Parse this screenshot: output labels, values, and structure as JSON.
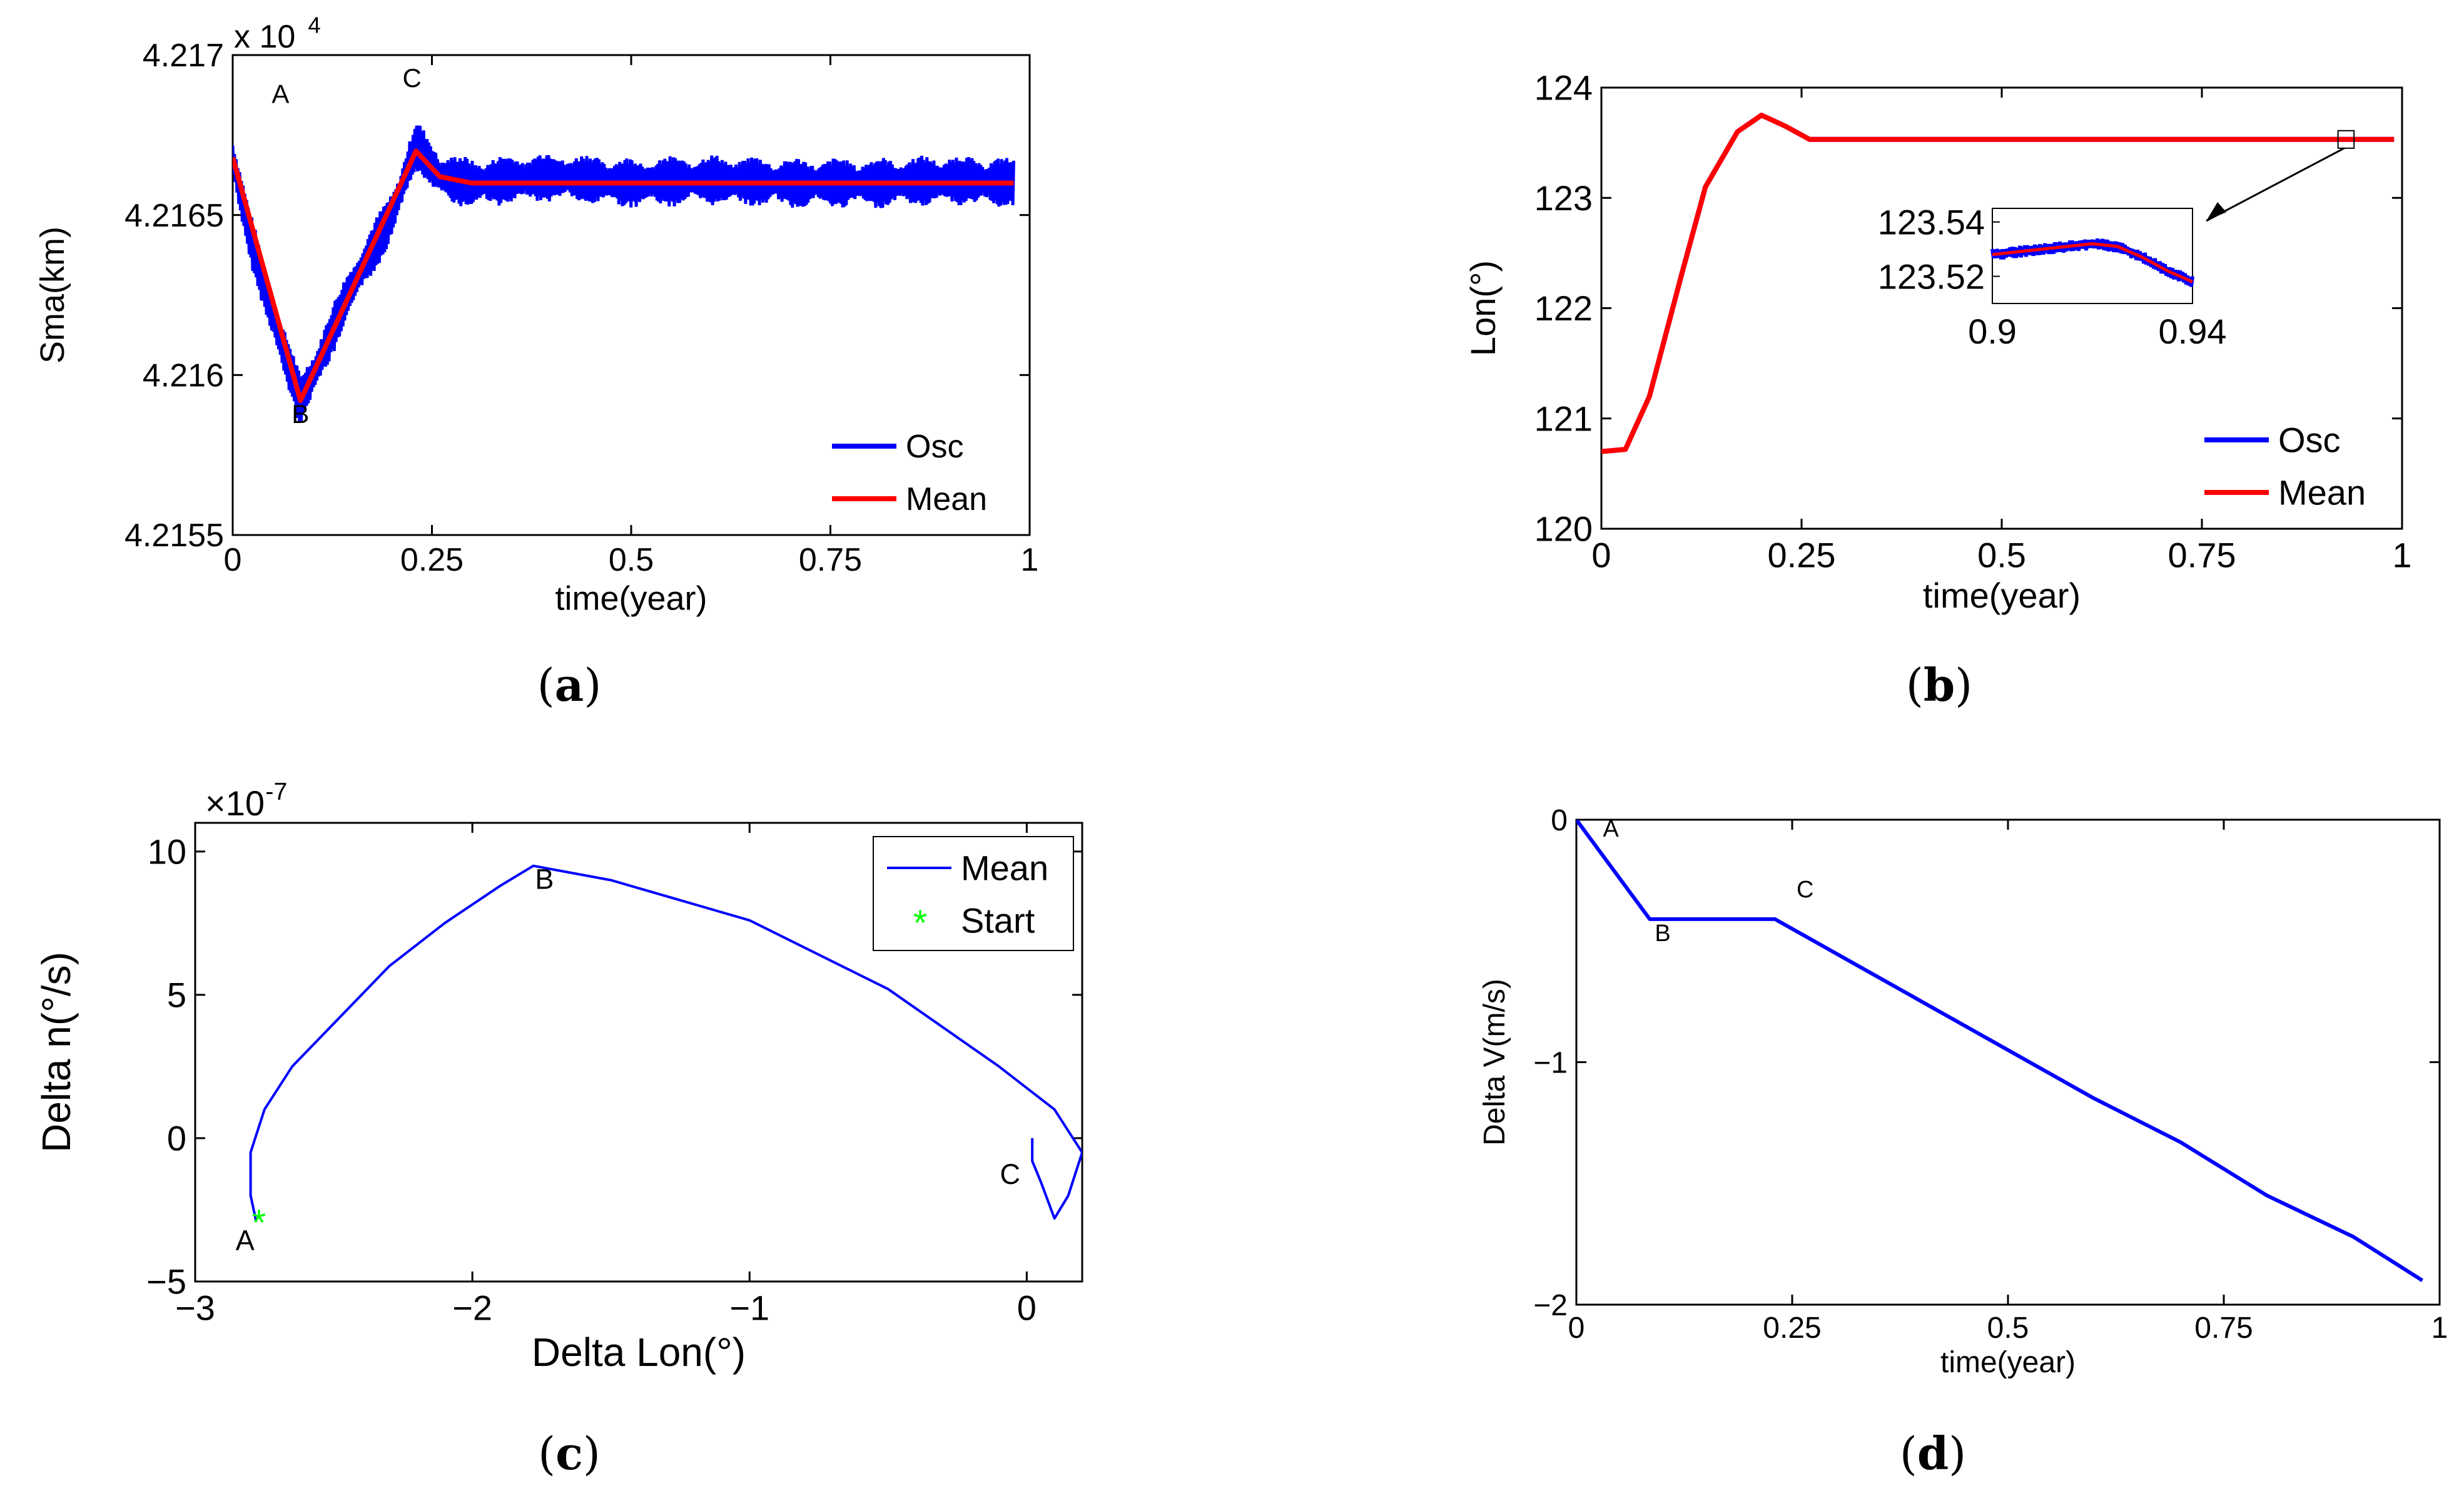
{
  "chart_data": [
    {
      "id": "a",
      "type": "line",
      "caption_letter": "a",
      "xlabel": "time(year)",
      "ylabel": "Sma(km)",
      "exponent_label": "x 10",
      "exponent_power": "4",
      "xlim": [
        0,
        1
      ],
      "ylim": [
        4.2155,
        4.217
      ],
      "xticks": [
        0,
        0.25,
        0.5,
        0.75,
        1
      ],
      "xtick_labels": [
        "0",
        "0.25",
        "0.5",
        "0.75",
        "1"
      ],
      "yticks": [
        4.2155,
        4.216,
        4.2165,
        4.217
      ],
      "ytick_labels": [
        "4.2155",
        "4.216",
        "4.2165",
        "4.217"
      ],
      "series": [
        {
          "name": "Osc",
          "color": "#0000ff",
          "band_halfwidth": 8e-05,
          "points": [
            [
              0,
              4.21668
            ],
            [
              0.02,
              4.21645
            ],
            [
              0.05,
              4.21618
            ],
            [
              0.085,
              4.21592
            ],
            [
              0.11,
              4.21605
            ],
            [
              0.15,
              4.21628
            ],
            [
              0.2,
              4.2165
            ],
            [
              0.23,
              4.21672
            ],
            [
              0.26,
              4.21662
            ],
            [
              0.3,
              4.2166
            ],
            [
              0.4,
              4.21662
            ],
            [
              0.5,
              4.2166
            ],
            [
              0.6,
              4.21661
            ],
            [
              0.7,
              4.2166
            ],
            [
              0.8,
              4.2166
            ],
            [
              0.9,
              4.21661
            ],
            [
              0.98,
              4.2166
            ]
          ]
        },
        {
          "name": "Mean",
          "color": "#ff0000",
          "points": [
            [
              0,
              4.21668
            ],
            [
              0.085,
              4.21592
            ],
            [
              0.23,
              4.2167
            ],
            [
              0.26,
              4.21662
            ],
            [
              0.3,
              4.2166
            ],
            [
              0.5,
              4.2166
            ],
            [
              0.75,
              4.2166
            ],
            [
              0.98,
              4.2166
            ]
          ]
        }
      ],
      "annotations": [
        {
          "text": "A",
          "x": 0.06,
          "y": 4.21685
        },
        {
          "text": "B",
          "x": 0.085,
          "y": 4.21585
        },
        {
          "text": "C",
          "x": 0.225,
          "y": 4.2169
        }
      ],
      "legend": {
        "position": "bottom-right",
        "entries": [
          "Osc",
          "Mean"
        ]
      }
    },
    {
      "id": "b",
      "type": "line",
      "caption_letter": "b",
      "xlabel": "time(year)",
      "ylabel": "Lon(°)",
      "xlim": [
        0,
        1
      ],
      "ylim": [
        120,
        124
      ],
      "xticks": [
        0,
        0.25,
        0.5,
        0.75,
        1
      ],
      "xtick_labels": [
        "0",
        "0.25",
        "0.5",
        "0.75",
        "1"
      ],
      "yticks": [
        120,
        121,
        122,
        123,
        124
      ],
      "ytick_labels": [
        "120",
        "121",
        "122",
        "123",
        "124"
      ],
      "series": [
        {
          "name": "Osc",
          "color": "#0000ff",
          "points": [
            [
              0,
              120.7
            ],
            [
              0.03,
              120.72
            ],
            [
              0.06,
              121.2
            ],
            [
              0.1,
              122.3
            ],
            [
              0.13,
              123.1
            ],
            [
              0.17,
              123.6
            ],
            [
              0.2,
              123.75
            ],
            [
              0.23,
              123.65
            ],
            [
              0.26,
              123.53
            ],
            [
              0.4,
              123.53
            ],
            [
              0.6,
              123.53
            ],
            [
              0.8,
              123.53
            ],
            [
              0.99,
              123.53
            ]
          ]
        },
        {
          "name": "Mean",
          "color": "#ff0000",
          "points": [
            [
              0,
              120.7
            ],
            [
              0.03,
              120.72
            ],
            [
              0.06,
              121.2
            ],
            [
              0.1,
              122.3
            ],
            [
              0.13,
              123.1
            ],
            [
              0.17,
              123.6
            ],
            [
              0.2,
              123.75
            ],
            [
              0.23,
              123.65
            ],
            [
              0.26,
              123.53
            ],
            [
              0.4,
              123.53
            ],
            [
              0.6,
              123.53
            ],
            [
              0.8,
              123.53
            ],
            [
              0.99,
              123.53
            ]
          ]
        }
      ],
      "inset": {
        "xlim": [
          0.9,
          0.94
        ],
        "ylim": [
          123.51,
          123.545
        ],
        "xticks": [
          0.9,
          0.94
        ],
        "xtick_labels": [
          "0.9",
          "0.94"
        ],
        "yticks": [
          123.52,
          123.54
        ],
        "ytick_labels": [
          "123.52",
          "123.54"
        ],
        "points": [
          [
            0.9,
            123.528
          ],
          [
            0.91,
            123.53
          ],
          [
            0.92,
            123.532
          ],
          [
            0.925,
            123.531
          ],
          [
            0.93,
            123.527
          ],
          [
            0.935,
            123.522
          ],
          [
            0.94,
            123.518
          ]
        ],
        "zoom_box_x": [
          0.92,
          0.94
        ]
      },
      "legend": {
        "position": "bottom-right",
        "entries": [
          "Osc",
          "Mean"
        ]
      }
    },
    {
      "id": "c",
      "type": "line",
      "caption_letter": "c",
      "xlabel": "Delta Lon(°)",
      "ylabel": "Delta n(°/s)",
      "exponent_label": "×10",
      "exponent_power": "-7",
      "xlim": [
        -3,
        0.2
      ],
      "ylim": [
        -5,
        11
      ],
      "xticks": [
        -3,
        -2,
        -1,
        0
      ],
      "xtick_labels": [
        "−3",
        "−2",
        "−1",
        "0"
      ],
      "yticks": [
        -5,
        0,
        5,
        10
      ],
      "ytick_labels": [
        "−5",
        "0",
        "5",
        "10"
      ],
      "series": [
        {
          "name": "Mean",
          "color": "#0000ff",
          "points": [
            [
              -2.78,
              -2.9
            ],
            [
              -2.8,
              -2.0
            ],
            [
              -2.8,
              -0.5
            ],
            [
              -2.75,
              1.0
            ],
            [
              -2.65,
              2.5
            ],
            [
              -2.5,
              4.0
            ],
            [
              -2.3,
              6.0
            ],
            [
              -2.1,
              7.5
            ],
            [
              -1.9,
              8.8
            ],
            [
              -1.78,
              9.5
            ],
            [
              -1.5,
              9.0
            ],
            [
              -1.0,
              7.6
            ],
            [
              -0.5,
              5.2
            ],
            [
              -0.1,
              2.5
            ],
            [
              0.1,
              1.0
            ],
            [
              0.2,
              -0.5
            ],
            [
              0.15,
              -2.0
            ],
            [
              0.1,
              -2.8
            ],
            [
              0.05,
              -1.5
            ],
            [
              0.02,
              -0.8
            ],
            [
              0.02,
              0.0
            ]
          ]
        },
        {
          "name": "Start",
          "color": "#00ff00",
          "points": [
            [
              -2.77,
              -2.9
            ]
          ]
        }
      ],
      "annotations": [
        {
          "text": "A",
          "x": -2.82,
          "y": -3.9
        },
        {
          "text": "B",
          "x": -1.74,
          "y": 8.7
        },
        {
          "text": "C",
          "x": -0.06,
          "y": -1.6
        }
      ],
      "legend": {
        "position": "top-right",
        "entries": [
          "Mean",
          "Start"
        ]
      }
    },
    {
      "id": "d",
      "type": "line",
      "caption_letter": "d",
      "xlabel": "time(year)",
      "ylabel": "Delta V(m/s)",
      "xlim": [
        0,
        1
      ],
      "ylim": [
        -2,
        0
      ],
      "xticks": [
        0,
        0.25,
        0.5,
        0.75,
        1
      ],
      "xtick_labels": [
        "0",
        "0.25",
        "0.5",
        "0.75",
        "1"
      ],
      "yticks": [
        -2,
        -1,
        0
      ],
      "ytick_labels": [
        "−2",
        "−1",
        "0"
      ],
      "series": [
        {
          "name": "",
          "color": "#0000ff",
          "points": [
            [
              0,
              0
            ],
            [
              0.085,
              -0.41
            ],
            [
              0.23,
              -0.41
            ],
            [
              0.3,
              -0.55
            ],
            [
              0.4,
              -0.75
            ],
            [
              0.5,
              -0.95
            ],
            [
              0.6,
              -1.15
            ],
            [
              0.7,
              -1.33
            ],
            [
              0.8,
              -1.55
            ],
            [
              0.9,
              -1.72
            ],
            [
              0.98,
              -1.9
            ]
          ]
        }
      ],
      "annotations": [
        {
          "text": "A",
          "x": 0.04,
          "y": -0.07
        },
        {
          "text": "B",
          "x": 0.1,
          "y": -0.5
        },
        {
          "text": "C",
          "x": 0.265,
          "y": -0.32
        }
      ]
    }
  ]
}
